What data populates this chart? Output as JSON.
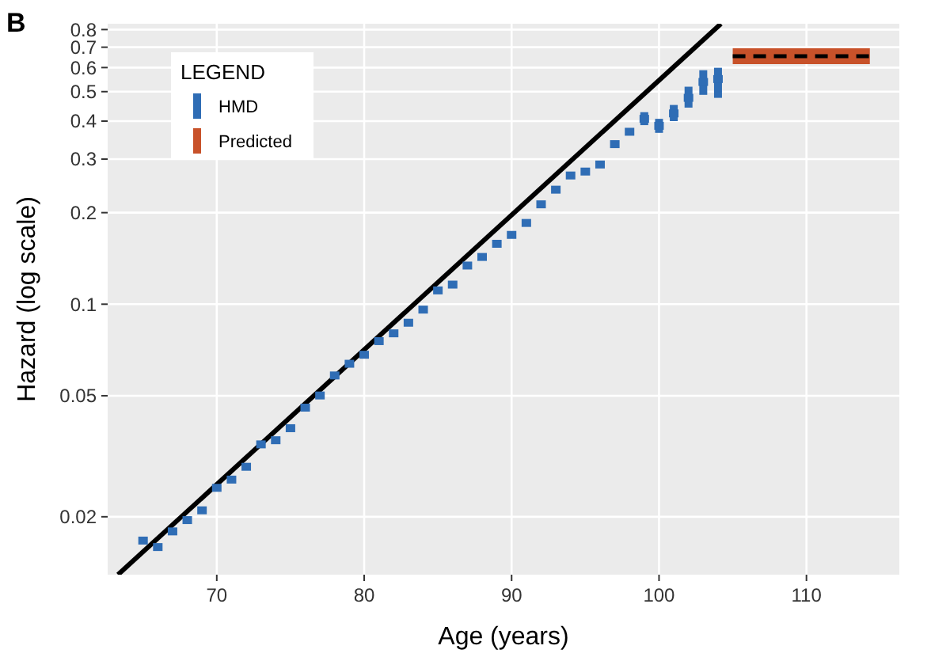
{
  "chart_data": {
    "type": "scatter",
    "title": "B",
    "xlabel": "Age (years)",
    "ylabel": "Hazard (log scale)",
    "legend_title": "LEGEND",
    "log": "y",
    "grid": true,
    "legend": "top left",
    "xlim": [
      62.6,
      116.3
    ],
    "xticks": [
      70,
      80,
      90,
      100,
      110
    ],
    "ylim": [
      0.0129,
      0.836
    ],
    "yticks": [
      0.02,
      0.05,
      0.1,
      0.2,
      0.3,
      0.4,
      0.5,
      0.6,
      0.7,
      0.8
    ],
    "series": [
      {
        "name": "HMD",
        "marker": "square",
        "color": "#2f6db5",
        "x": [
          65,
          66,
          67,
          68,
          69,
          70,
          71,
          72,
          73,
          74,
          75,
          76,
          77,
          78,
          79,
          80,
          81,
          82,
          83,
          84,
          85,
          86,
          87,
          88,
          89,
          90,
          91,
          92,
          93,
          94,
          95,
          96,
          97,
          98,
          99,
          100,
          101,
          102,
          103,
          104
        ],
        "values": [
          0.0167,
          0.0159,
          0.0179,
          0.0195,
          0.021,
          0.0249,
          0.0265,
          0.0292,
          0.0346,
          0.0357,
          0.0391,
          0.0457,
          0.0501,
          0.0583,
          0.0637,
          0.0682,
          0.0756,
          0.0802,
          0.0869,
          0.096,
          0.111,
          0.116,
          0.134,
          0.143,
          0.158,
          0.169,
          0.185,
          0.213,
          0.238,
          0.265,
          0.273,
          0.288,
          0.336,
          0.369,
          0.407,
          0.386,
          0.424,
          0.477,
          0.538,
          0.55
        ],
        "errors": [
          null,
          null,
          null,
          null,
          null,
          null,
          null,
          null,
          null,
          null,
          null,
          null,
          null,
          null,
          null,
          null,
          null,
          null,
          null,
          null,
          null,
          null,
          null,
          null,
          null,
          null,
          null,
          null,
          null,
          null,
          null,
          null,
          null,
          null,
          [
            0.388,
            0.428
          ],
          [
            0.366,
            0.407
          ],
          [
            0.4,
            0.452
          ],
          [
            0.443,
            0.519
          ],
          [
            0.488,
            0.588
          ],
          [
            0.477,
            0.599
          ]
        ]
      },
      {
        "name": "Predicted",
        "type": "line",
        "marker": "none",
        "line_style": "solid",
        "color": "#c8522a",
        "x": [
          105,
          114.3
        ],
        "values": [
          0.654,
          0.654
        ]
      },
      {
        "type": "line",
        "marker": "none",
        "line_style": "dashed",
        "color": "#000000",
        "x": [
          105,
          114.3
        ],
        "values": [
          0.654,
          0.654
        ]
      },
      {
        "type": "line",
        "marker": "none",
        "line_style": "solid",
        "color": "#000000",
        "x": [
          63.3,
          104.2
        ],
        "values": [
          0.0129,
          0.836
        ]
      }
    ]
  }
}
